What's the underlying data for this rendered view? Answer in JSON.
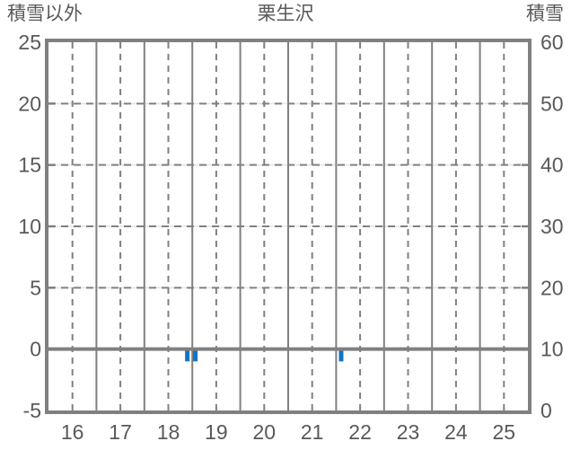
{
  "header": {
    "left_axis_title": "積雪以外",
    "chart_title": "栗生沢",
    "right_axis_title": "積雪"
  },
  "chart_data": {
    "type": "bar",
    "title": "栗生沢",
    "left_axis": {
      "label": "積雪以外",
      "min": -5,
      "max": 25,
      "tick_step": 5,
      "ticks": [
        25,
        20,
        15,
        10,
        5,
        0,
        -5
      ]
    },
    "right_axis": {
      "label": "積雪",
      "min": 0,
      "max": 60,
      "tick_step": 10,
      "ticks": [
        60,
        50,
        40,
        30,
        20,
        10,
        0
      ]
    },
    "x_axis": {
      "start_day": 16,
      "end_day": 25,
      "labels": [
        "16",
        "17",
        "18",
        "19",
        "20",
        "21",
        "22",
        "23",
        "24",
        "25"
      ]
    },
    "grid": {
      "vertical_solid_at": "day-boundaries",
      "vertical_dashed_at": "day-midpoints",
      "horizontal_dashed_at_left_values": [
        20,
        15,
        10,
        5
      ],
      "baseline_left_value": 0
    },
    "series": [
      {
        "name": "積雪以外",
        "type": "bar",
        "color": "#1274c2",
        "points": [
          {
            "day": 18,
            "hour": 21,
            "value": -1
          },
          {
            "day": 19,
            "hour": 1,
            "value": -1
          },
          {
            "day": 22,
            "hour": 2,
            "value": -1
          }
        ]
      }
    ],
    "colors": {
      "grid": "#808080",
      "border": "#808080",
      "text": "#595959",
      "bar": "#1274c2",
      "grid_faint": "#e3e3e3"
    }
  }
}
